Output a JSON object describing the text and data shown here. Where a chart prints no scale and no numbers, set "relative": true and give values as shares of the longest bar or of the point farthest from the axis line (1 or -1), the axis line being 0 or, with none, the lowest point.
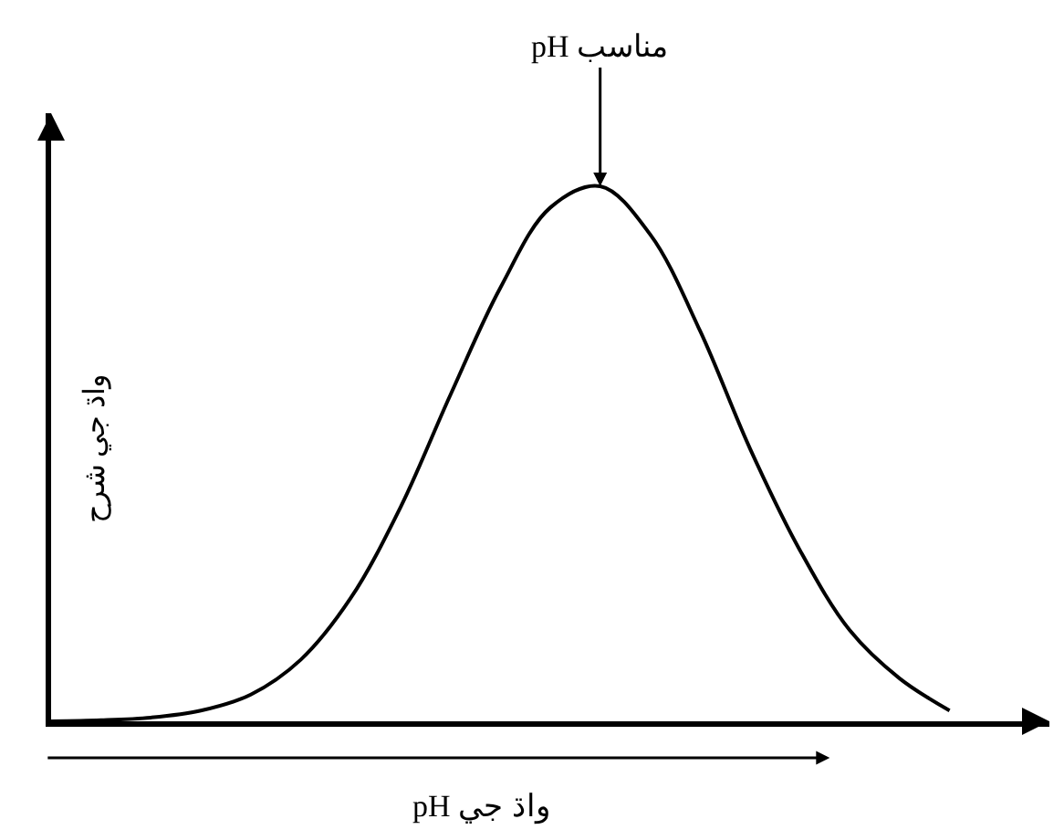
{
  "chart_data": {
    "type": "line",
    "relative": true,
    "xlabel": "pH واڌ جي",
    "ylabel": "واڌ جي شرح",
    "categories": [
      null,
      null,
      null,
      null,
      null,
      null,
      null,
      null,
      null,
      null,
      null,
      null,
      null,
      null,
      null,
      null,
      null,
      null,
      null
    ],
    "series": [
      {
        "color": "#000000",
        "values": [
          0,
          0.002,
          0.007,
          0.02,
          0.05,
          0.115,
          0.23,
          0.4,
          0.61,
          0.81,
          0.96,
          1,
          0.91,
          0.73,
          0.51,
          0.32,
          0.17,
          0.08,
          0.02
        ]
      }
    ],
    "annotations": [
      {
        "text": "pH مناسب",
        "y": 1
      }
    ],
    "marker": "none",
    "line_style": "solid"
  }
}
